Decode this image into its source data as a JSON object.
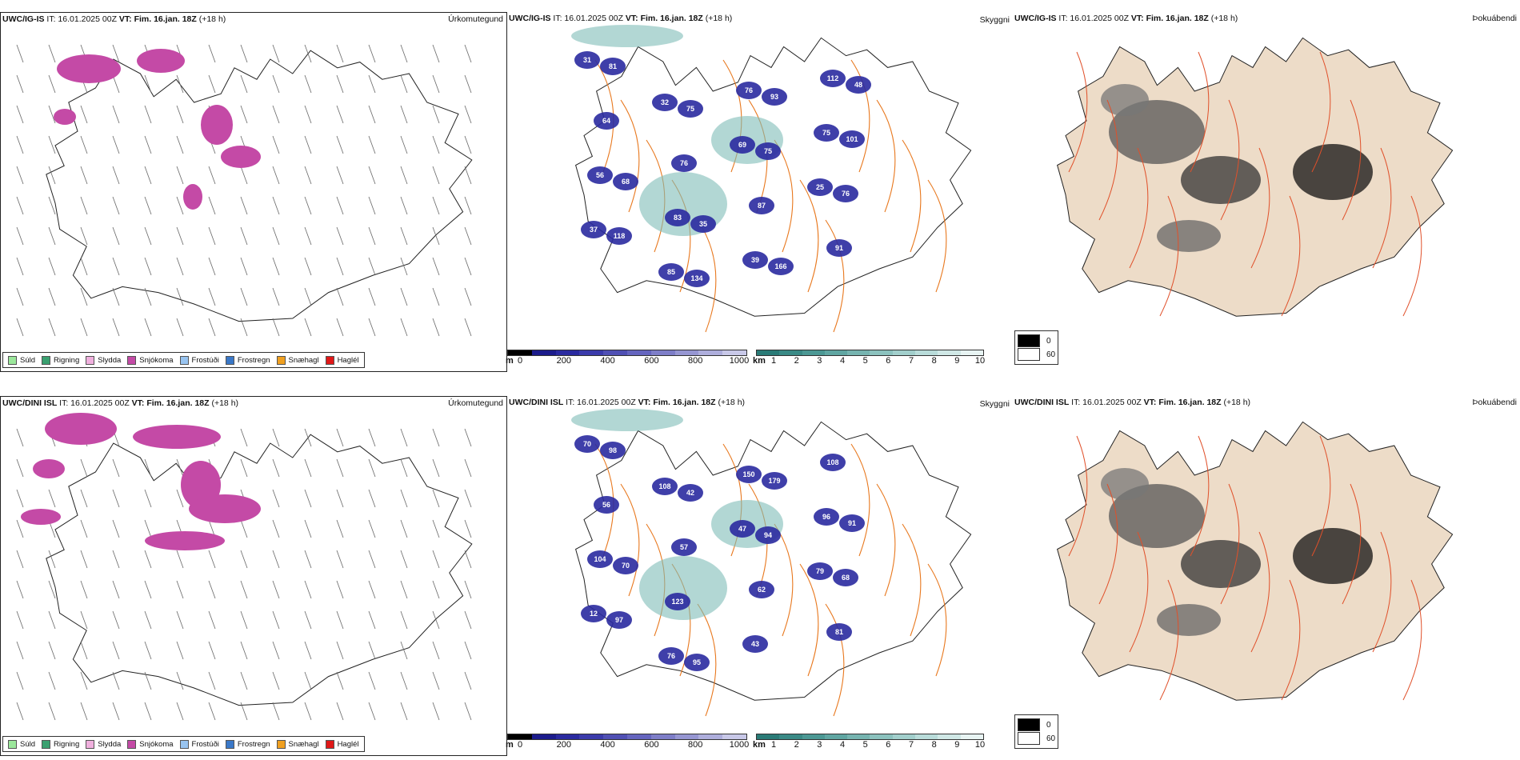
{
  "rows": [
    {
      "precip_title": {
        "model": "UWC/IG-IS",
        "it": "IT: 16.01.2025 00Z",
        "vt": "VT: Fim. 16.jan. 18Z",
        "lead": "(+18 h)"
      },
      "cloud_title": {
        "model": "UWC/IG-IS",
        "it": "IT: 16.01.2025 00Z",
        "vt": "VT: Fim. 16.jan. 18Z",
        "lead": "(+18 h)"
      },
      "fog_title": {
        "model": "UWC/IG-IS",
        "it": "IT: 16.01.2025 00Z",
        "vt": "VT: Fim. 16.jan. 18Z",
        "lead": "(+18 h)"
      }
    },
    {
      "precip_title": {
        "model": "UWC/DINI ISL",
        "it": "IT: 16.01.2025 00Z",
        "vt": "VT: Fim. 16.jan. 18Z",
        "lead": "(+18 h)"
      },
      "cloud_title": {
        "model": "UWC/DINI ISL",
        "it": "IT: 16.01.2025 00Z",
        "vt": "VT: Fim. 16.jan. 18Z",
        "lead": "(+18 h)"
      },
      "fog_title": {
        "model": "UWC/DINI ISL",
        "it": "IT: 16.01.2025 00Z",
        "vt": "VT: Fim. 16.jan. 18Z",
        "lead": "(+18 h)"
      }
    }
  ],
  "labels": {
    "precip_type": "Úrkomutegund",
    "cloud": "Skyggni",
    "fog": "Þokuábendi"
  },
  "precip_legend": [
    {
      "label": "Súld",
      "color": "#9be79b"
    },
    {
      "label": "Rigning",
      "color": "#3aa070"
    },
    {
      "label": "Slydda",
      "color": "#f0b0de"
    },
    {
      "label": "Snjókoma",
      "color": "#c44aa6"
    },
    {
      "label": "Frostúði",
      "color": "#98c4f0"
    },
    {
      "label": "Frostregn",
      "color": "#3a78c8"
    },
    {
      "label": "Snæhagl",
      "color": "#f0a020"
    },
    {
      "label": "Haglél",
      "color": "#e01818"
    }
  ],
  "ceiling_bar": {
    "unit": "m",
    "ticks": [
      "0",
      "200",
      "400",
      "600",
      "800",
      "1000"
    ],
    "colors": [
      "#000000",
      "#1c1c8c",
      "#2a2aa0",
      "#3b3bab",
      "#5050b4",
      "#6565bf",
      "#7e7ec8",
      "#9696d2",
      "#aeaedc",
      "#c8c8e8"
    ]
  },
  "visibility_bar": {
    "unit": "km",
    "ticks": [
      "1",
      "2",
      "3",
      "4",
      "5",
      "6",
      "7",
      "8",
      "9",
      "10"
    ],
    "colors": [
      "#2a7b77",
      "#3a8a86",
      "#4c9894",
      "#60a6a2",
      "#76b4b0",
      "#8cc2be",
      "#a2cfcc",
      "#b9dcda",
      "#d0e8e6",
      "#e8f4f3"
    ]
  },
  "fog_key": {
    "high": "0",
    "low": "60"
  },
  "cloud_labels_top": [
    "31",
    "32",
    "69",
    "25",
    "37",
    "85",
    "76",
    "75",
    "56",
    "83",
    "39",
    "112",
    "64",
    "76",
    "87",
    "91",
    "81",
    "75",
    "75",
    "76",
    "118",
    "134",
    "93",
    "101",
    "68",
    "35",
    "166",
    "48"
  ],
  "cloud_labels_bottom": [
    "70",
    "108",
    "47",
    "79",
    "12",
    "76",
    "150",
    "96",
    "104",
    "123",
    "43",
    "108",
    "56",
    "57",
    "62",
    "81",
    "98",
    "42",
    "94",
    "68",
    "97",
    "95",
    "179",
    "91",
    "70"
  ]
}
